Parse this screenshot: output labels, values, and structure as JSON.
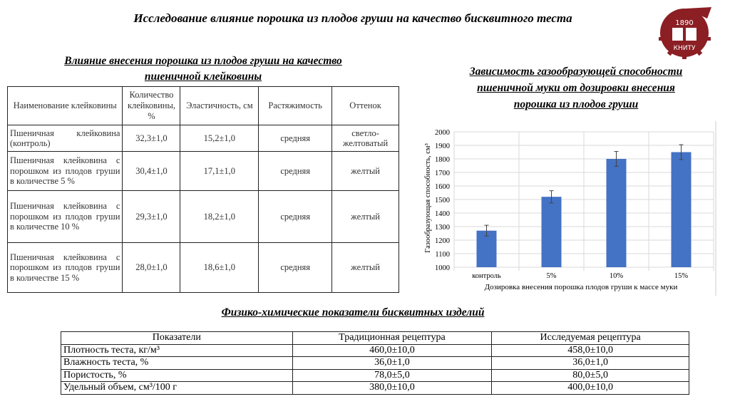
{
  "title": "Исследование влияние порошка из плодов груши на качество бисквитного теста",
  "logo": {
    "year": "1890",
    "name": "КНИТУ",
    "color": "#8b1f24"
  },
  "gluten_section": {
    "heading_line1": "Влияние внесения порошка из плодов груши на качество",
    "heading_line2": "пшеничной клейковины",
    "columns": [
      "Наименование клейковины",
      "Количество клейковины, %",
      "Эластичность, см",
      "Растяжимость",
      "Оттенок"
    ],
    "rows": [
      [
        "Пшеничная клейковина (контроль)",
        "32,3±1,0",
        "15,2±1,0",
        "средняя",
        "светло-желтоватый"
      ],
      [
        "Пшеничная клейковина с порошком из плодов груши в количестве 5 %",
        "30,4±1,0",
        "17,1±1,0",
        "средняя",
        "желтый"
      ],
      [
        "Пшеничная клейковина с порошком из плодов груши в количестве 10 %",
        "29,3±1,0",
        "18,2±1,0",
        "средняя",
        "желтый"
      ],
      [
        "Пшеничная клейковина с порошком из плодов груши в количестве 15 %",
        "28,0±1,0",
        "18,6±1,0",
        "средняя",
        "желтый"
      ]
    ]
  },
  "chart_section": {
    "heading_line1": "Зависимость газообразующей способности",
    "heading_line2": "пшеничной муки от дозировки внесения",
    "heading_line3": "порошка из плодов груши"
  },
  "chart_data": {
    "type": "bar",
    "categories": [
      "контроль",
      "5%",
      "10%",
      "15%"
    ],
    "values": [
      1270,
      1520,
      1800,
      1850
    ],
    "errors": [
      40,
      45,
      55,
      55
    ],
    "xlabel": "Дозировка внесения порошка плодов груши к массе муки",
    "ylabel": "Газообразующая способность, см³",
    "ylim": [
      1000,
      2000
    ],
    "yticks": [
      "1000",
      "1100",
      "1200",
      "1300",
      "1400",
      "1500",
      "1600",
      "1700",
      "1800",
      "1900",
      "2000"
    ],
    "grid": true,
    "bar_color": "#4472c4"
  },
  "physchem_section": {
    "heading": "Физико-химические показатели бисквитных изделий",
    "columns": [
      "Показатели",
      "Традиционная рецептура",
      "Исследуемая рецептура"
    ],
    "rows": [
      [
        "Плотность теста, кг/м³",
        "460,0±10,0",
        "458,0±10,0"
      ],
      [
        "Влажность теста, %",
        "36,0±1,0",
        "36,0±1,0"
      ],
      [
        "Пористость, %",
        "78,0±5,0",
        "80,0±5,0"
      ],
      [
        "Удельный объем, см³/100 г",
        "380,0±10,0",
        "400,0±10,0"
      ]
    ]
  }
}
